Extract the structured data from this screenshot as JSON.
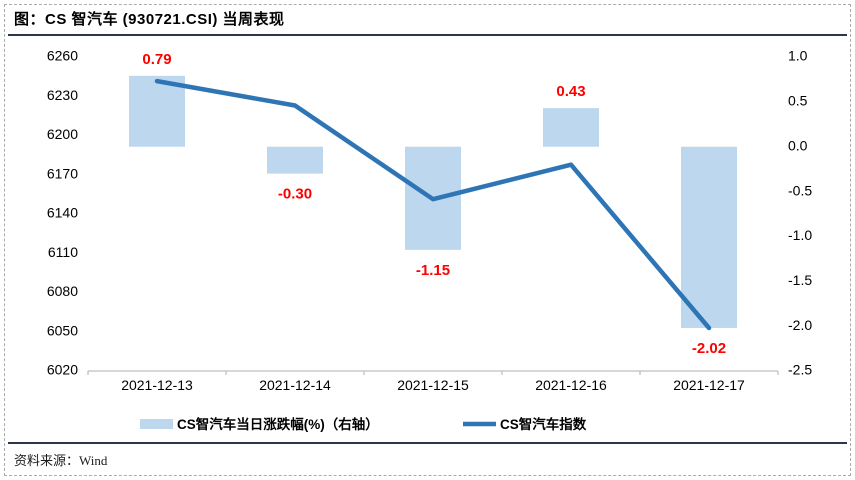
{
  "figure": {
    "title": "图：CS 智汽车 (930721.CSI) 当周表现",
    "source_label": "资料来源：Wind"
  },
  "colors": {
    "bar_fill": "#BDD7EE",
    "line_stroke": "#2E75B6",
    "data_label": "#FF0000",
    "axis_gray": "#BFBFBF",
    "text_black": "#000000",
    "separator": "#2B3648"
  },
  "chart_data": {
    "type": "bar",
    "subtype": "bar+line combo",
    "categories": [
      "2021-12-13",
      "2021-12-14",
      "2021-12-15",
      "2021-12-16",
      "2021-12-17"
    ],
    "series": [
      {
        "name": "CS智汽车当日涨跌幅(%)（右轴）",
        "type": "bar",
        "axis": "right",
        "values": [
          0.79,
          -0.3,
          -1.15,
          0.43,
          -2.02
        ],
        "value_labels": [
          "0.79",
          "-0.30",
          "-1.15",
          "0.43",
          "-2.02"
        ]
      },
      {
        "name": "CS智汽车指数",
        "type": "line",
        "axis": "left",
        "values": [
          6241.6,
          6222.9,
          6151.3,
          6177.7,
          6052.9
        ]
      }
    ],
    "left_axis": {
      "min": 6020,
      "max": 6260,
      "step": 30,
      "ticks": [
        "6260",
        "6230",
        "6200",
        "6170",
        "6140",
        "6110",
        "6080",
        "6050",
        "6020"
      ]
    },
    "right_axis": {
      "min": -2.5,
      "max": 1.0,
      "step": 0.5,
      "ticks": [
        "1.0",
        "0.5",
        "0.0",
        "-0.5",
        "-1.0",
        "-1.5",
        "-2.0",
        "-2.5"
      ]
    },
    "grid": false,
    "legend_position": "bottom",
    "title": "图：CS 智汽车 (930721.CSI) 当周表现"
  }
}
